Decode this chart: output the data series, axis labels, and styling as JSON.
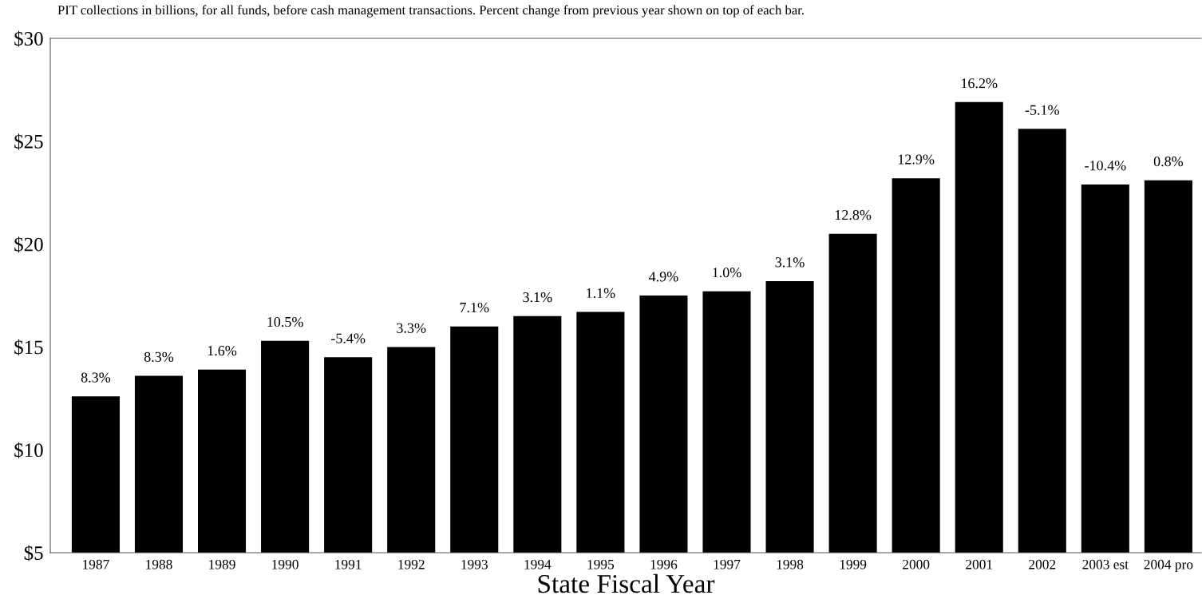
{
  "chart_data": {
    "type": "bar",
    "title": "PIT collections in billions, for all funds, before cash management transactions. Percent change from previous year shown on top of each bar.",
    "xlabel": "State Fiscal Year",
    "categories": [
      "1987",
      "1988",
      "1989",
      "1990",
      "1991",
      "1992",
      "1993",
      "1994",
      "1995",
      "1996",
      "1997",
      "1998",
      "1999",
      "2000",
      "2001",
      "2002",
      "2003 est",
      "2004 pro"
    ],
    "values": [
      12.6,
      13.6,
      13.9,
      15.3,
      14.5,
      15.0,
      16.0,
      16.5,
      16.7,
      17.5,
      17.7,
      18.2,
      20.5,
      23.2,
      26.9,
      25.6,
      22.9,
      23.1
    ],
    "annotations": [
      {
        "text": "8.3%",
        "x": "1987",
        "y": 12.6
      },
      {
        "text": "8.3%",
        "x": "1988",
        "y": 13.6
      },
      {
        "text": "1.6%",
        "x": "1989",
        "y": 13.9
      },
      {
        "text": "10.5%",
        "x": "1990",
        "y": 15.3
      },
      {
        "text": "-5.4%",
        "x": "1991",
        "y": 14.5
      },
      {
        "text": "3.3%",
        "x": "1992",
        "y": 15.0
      },
      {
        "text": "7.1%",
        "x": "1993",
        "y": 16.0
      },
      {
        "text": "3.1%",
        "x": "1994",
        "y": 16.5
      },
      {
        "text": "1.1%",
        "x": "1995",
        "y": 16.7
      },
      {
        "text": "4.9%",
        "x": "1996",
        "y": 17.5
      },
      {
        "text": "1.0%",
        "x": "1997",
        "y": 17.7
      },
      {
        "text": "3.1%",
        "x": "1998",
        "y": 18.2
      },
      {
        "text": "12.8%",
        "x": "1999",
        "y": 20.5
      },
      {
        "text": "12.9%",
        "x": "2000",
        "y": 23.2
      },
      {
        "text": "16.2%",
        "x": "2001",
        "y": 26.9
      },
      {
        "text": "-5.1%",
        "x": "2002",
        "y": 25.6
      },
      {
        "text": "-10.4%",
        "x": "2003 est",
        "y": 22.9
      },
      {
        "text": "0.8%",
        "x": "2004 pro",
        "y": 23.1
      }
    ],
    "color": "#000000",
    "ylim": [
      5,
      30
    ],
    "yticks": [
      {
        "value": 5,
        "label": "$5"
      },
      {
        "value": 10,
        "label": "$10"
      },
      {
        "value": 15,
        "label": "$15"
      },
      {
        "value": 20,
        "label": "$20"
      },
      {
        "value": 25,
        "label": "$25"
      },
      {
        "value": 30,
        "label": "$30"
      }
    ],
    "grid": false,
    "legend": false
  }
}
